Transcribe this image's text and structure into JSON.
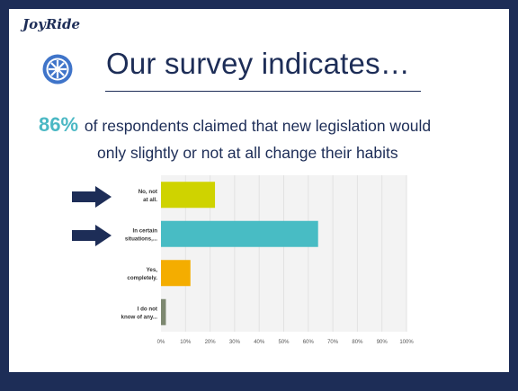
{
  "brand": {
    "name": "JoyRide",
    "color": "#1d2d57"
  },
  "slide": {
    "title": "Our survey indicates…",
    "stat_value": "86%",
    "stat_line1": "of respondents claimed that new legislation would",
    "stat_line2": "only slightly or not at all change their habits"
  },
  "colors": {
    "accent": "#4bb8c4",
    "dark": "#1d2d57"
  },
  "chart_data": {
    "type": "bar",
    "orientation": "horizontal",
    "categories": [
      "No, not at all.",
      "In certain situations,...",
      "Yes, completely.",
      "I do not know of any..."
    ],
    "values": [
      22,
      64,
      12,
      2
    ],
    "colors": [
      "#cfd300",
      "#48bcc4",
      "#f4ad00",
      "#7d8870"
    ],
    "xticks": [
      "0%",
      "10%",
      "20%",
      "30%",
      "40%",
      "50%",
      "60%",
      "70%",
      "80%",
      "90%",
      "100%"
    ],
    "xlim": [
      0,
      100
    ],
    "highlighted": [
      "No, not at all.",
      "In certain situations,..."
    ]
  },
  "icons": {
    "wheel": "wheel-icon",
    "arrow": "arrow-right-icon"
  }
}
